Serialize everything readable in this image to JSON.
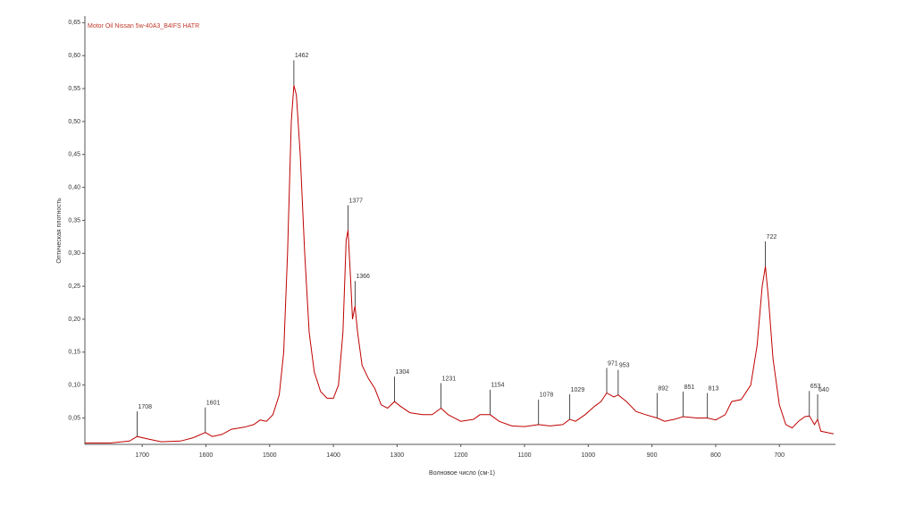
{
  "chart_data": {
    "type": "line",
    "title": "Motor Oil Nissan 5w-40A3_B4IFS HATR",
    "x_label": "Волновое число (см-1)",
    "y_label": "Оптическая плотность",
    "x": [
      1790,
      1750,
      1720,
      1708,
      1690,
      1670,
      1640,
      1620,
      1601,
      1590,
      1575,
      1560,
      1540,
      1525,
      1515,
      1505,
      1495,
      1485,
      1478,
      1472,
      1466,
      1462,
      1458,
      1452,
      1445,
      1438,
      1430,
      1420,
      1410,
      1400,
      1392,
      1385,
      1380,
      1377,
      1373,
      1370,
      1366,
      1362,
      1355,
      1345,
      1335,
      1325,
      1315,
      1304,
      1295,
      1280,
      1260,
      1245,
      1231,
      1220,
      1200,
      1180,
      1170,
      1154,
      1140,
      1120,
      1100,
      1078,
      1060,
      1040,
      1029,
      1020,
      1005,
      990,
      980,
      971,
      960,
      953,
      940,
      925,
      910,
      892,
      880,
      865,
      851,
      830,
      813,
      800,
      785,
      775,
      760,
      745,
      735,
      727,
      722,
      717,
      710,
      700,
      690,
      680,
      670,
      660,
      653,
      645,
      640,
      635,
      625,
      615
    ],
    "series": [
      {
        "name": "Motor Oil Nissan 5w-40A3_B4IFS HATR",
        "color": "#c00000",
        "values": [
          0.012,
          0.012,
          0.015,
          0.022,
          0.018,
          0.014,
          0.015,
          0.02,
          0.028,
          0.022,
          0.025,
          0.033,
          0.036,
          0.04,
          0.047,
          0.045,
          0.055,
          0.085,
          0.15,
          0.3,
          0.5,
          0.555,
          0.54,
          0.45,
          0.3,
          0.18,
          0.12,
          0.09,
          0.08,
          0.08,
          0.1,
          0.18,
          0.32,
          0.335,
          0.26,
          0.2,
          0.22,
          0.18,
          0.13,
          0.11,
          0.095,
          0.07,
          0.065,
          0.075,
          0.068,
          0.058,
          0.055,
          0.055,
          0.065,
          0.055,
          0.045,
          0.048,
          0.055,
          0.055,
          0.045,
          0.038,
          0.037,
          0.04,
          0.038,
          0.04,
          0.048,
          0.045,
          0.055,
          0.068,
          0.075,
          0.088,
          0.082,
          0.085,
          0.075,
          0.06,
          0.055,
          0.05,
          0.045,
          0.048,
          0.052,
          0.05,
          0.05,
          0.047,
          0.055,
          0.075,
          0.078,
          0.1,
          0.16,
          0.25,
          0.28,
          0.23,
          0.14,
          0.07,
          0.04,
          0.035,
          0.045,
          0.052,
          0.053,
          0.04,
          0.048,
          0.03,
          0.028,
          0.026
        ]
      }
    ],
    "peaks": [
      1708,
      1601,
      1462,
      1377,
      1366,
      1304,
      1231,
      1154,
      1078,
      1029,
      971,
      953,
      892,
      851,
      813,
      722,
      653,
      640
    ],
    "xlim": [
      1790,
      612
    ],
    "xticks": [
      1700,
      1600,
      1500,
      1400,
      1300,
      1200,
      1100,
      1000,
      900,
      800,
      700
    ],
    "ylim": [
      0.01,
      0.66
    ],
    "yticks": [
      {
        "value": 0.05,
        "label": "0,05"
      },
      {
        "value": 0.1,
        "label": "0,10"
      },
      {
        "value": 0.15,
        "label": "0,15"
      },
      {
        "value": 0.2,
        "label": "0,20"
      },
      {
        "value": 0.25,
        "label": "0,25"
      },
      {
        "value": 0.3,
        "label": "0,30"
      },
      {
        "value": 0.35,
        "label": "0,35"
      },
      {
        "value": 0.4,
        "label": "0,40"
      },
      {
        "value": 0.45,
        "label": "0,45"
      },
      {
        "value": 0.5,
        "label": "0,50"
      },
      {
        "value": 0.55,
        "label": "0,55"
      },
      {
        "value": 0.6,
        "label": "0,60"
      },
      {
        "value": 0.65,
        "label": "0,65"
      }
    ]
  }
}
